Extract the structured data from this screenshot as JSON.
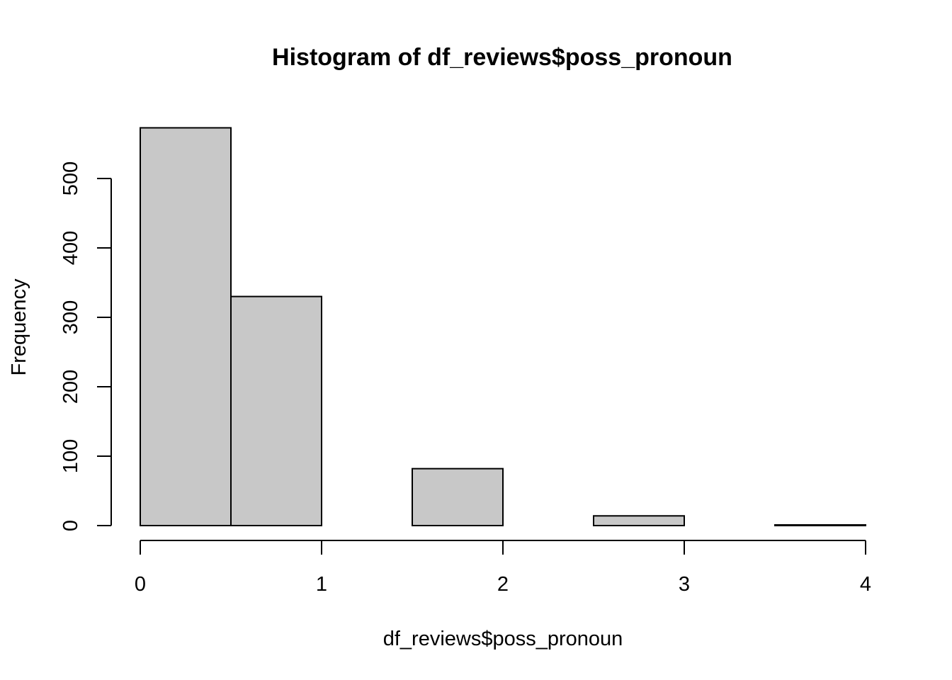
{
  "chart_data": {
    "type": "bar",
    "title": "Histogram of df_reviews$poss_pronoun",
    "xlabel": "df_reviews$poss_pronoun",
    "ylabel": "Frequency",
    "bins": [
      {
        "x0": 0.0,
        "x1": 0.5,
        "count": 573
      },
      {
        "x0": 0.5,
        "x1": 1.0,
        "count": 330
      },
      {
        "x0": 1.0,
        "x1": 1.5,
        "count": 0
      },
      {
        "x0": 1.5,
        "x1": 2.0,
        "count": 82
      },
      {
        "x0": 2.0,
        "x1": 2.5,
        "count": 0
      },
      {
        "x0": 2.5,
        "x1": 3.0,
        "count": 14
      },
      {
        "x0": 3.0,
        "x1": 3.5,
        "count": 0
      },
      {
        "x0": 3.5,
        "x1": 4.0,
        "count": 1
      }
    ],
    "xlim": [
      0,
      4
    ],
    "ylim": [
      0,
      573
    ],
    "x_ticks": [
      "0",
      "1",
      "2",
      "3",
      "4"
    ],
    "y_ticks": [
      "0",
      "100",
      "200",
      "300",
      "400",
      "500"
    ],
    "bar_color": "#c8c8c8",
    "grid": false,
    "legend": "none"
  }
}
